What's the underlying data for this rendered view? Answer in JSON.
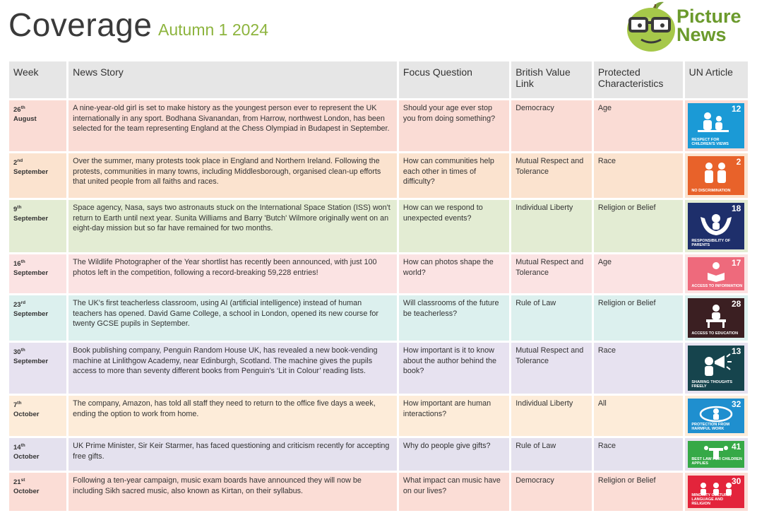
{
  "header": {
    "title": "Coverage",
    "subtitle": "Autumn 1 2024",
    "logo_line1": "Picture",
    "logo_line2": "News",
    "logo_icon": "apple-with-glasses-icon"
  },
  "table": {
    "columns": [
      "Week",
      "News Story",
      "Focus Question",
      "British Value Link",
      "Protected Characteristics",
      "UN Article"
    ],
    "rows": [
      {
        "week_day": "26",
        "week_suffix": "th",
        "week_month": "August",
        "story": "A nine-year-old girl is set to make history as the youngest person ever to represent the UK internationally in any sport. Bodhana Sivanandan, from Harrow, northwest London, has been selected for the team representing England at the Chess Olympiad in Budapest in September.",
        "question": "Should your age ever stop you from doing something?",
        "value": "Democracy",
        "characteristic": "Age",
        "un_number": "12",
        "un_caption": "Respect for children's views",
        "un_color": "#1b9ad6",
        "un_icon": "children-speaking-icon"
      },
      {
        "week_day": "2",
        "week_suffix": "nd",
        "week_month": "September",
        "story": "Over the summer, many protests took place in England and Northern Ireland. Following the protests, communities in many towns, including Middlesborough, organised clean-up efforts that united people from all faiths and races.",
        "question": "How can communities help each other in times of difficulty?",
        "value": "Mutual Respect and Tolerance",
        "characteristic": "Race",
        "un_number": "2",
        "un_caption": "No discrimination",
        "un_color": "#e8622a",
        "un_icon": "two-children-icon"
      },
      {
        "week_day": "9",
        "week_suffix": "th",
        "week_month": "September",
        "story": "Space agency, Nasa, says two astronauts stuck on the International Space Station (ISS) won't return to Earth until next year. Sunita Williams and Barry 'Butch' Wilmore originally went on an eight-day mission but so far have remained for two months.",
        "question": "How can we respond to unexpected events?",
        "value": "Individual Liberty",
        "characteristic": "Religion or Belief",
        "un_number": "18",
        "un_caption": "Responsibility of parents",
        "un_color": "#1e2f6b",
        "un_icon": "parent-hands-icon"
      },
      {
        "week_day": "16",
        "week_suffix": "th",
        "week_month": "September",
        "story": "The Wildlife Photographer of the Year shortlist has recently been announced, with just 100 photos left in the competition, following a record-breaking 59,228 entries!",
        "question": "How can photos shape the world?",
        "value": "Mutual Respect and Tolerance",
        "characteristic": "Age",
        "un_number": "17",
        "un_caption": "Access to information",
        "un_color": "#ee6a7c",
        "un_icon": "child-reading-icon"
      },
      {
        "week_day": "23",
        "week_suffix": "rd",
        "week_month": "September",
        "story": "The UK's first teacherless classroom, using AI (artificial intelligence) instead of human teachers has opened. David Game College, a school in London, opened its new course for twenty GCSE pupils in September.",
        "question": "Will classrooms of the future be teacherless?",
        "value": "Rule of Law",
        "characteristic": "Religion or Belief",
        "un_number": "28",
        "un_caption": "Access to education",
        "un_color": "#3b1f22",
        "un_icon": "child-at-desk-icon"
      },
      {
        "week_day": "30",
        "week_suffix": "th",
        "week_month": "September",
        "story": "Book publishing company, Penguin Random House UK, has revealed a new book-vending machine at Linlithgow Academy, near Edinburgh, Scotland. The machine gives the pupils access to more than seventy different books from Penguin's ‘Lit in Colour’ reading lists.",
        "question": "How important is it to know about the author behind the book?",
        "value": "Mutual Respect and Tolerance",
        "characteristic": "Race",
        "un_number": "13",
        "un_caption": "Sharing thoughts freely",
        "un_color": "#16444d",
        "un_icon": "megaphone-icon"
      },
      {
        "week_day": "7",
        "week_suffix": "th",
        "week_month": "October",
        "story": "The company, Amazon, has told all staff they need to return to the office five days a week, ending the option to work from home.",
        "question": "How important are human interactions?",
        "value": "Individual Liberty",
        "characteristic": "All",
        "un_number": "32",
        "un_caption": "Protection from harmful work",
        "un_color": "#1f8fcf",
        "un_icon": "protected-child-icon"
      },
      {
        "week_day": "14",
        "week_suffix": "th",
        "week_month": "October",
        "story": "UK Prime Minister, Sir Keir Starmer, has faced questioning and criticism recently for accepting free gifts.",
        "question": "Why do people give gifts?",
        "value": "Rule of Law",
        "characteristic": "Race",
        "un_number": "41",
        "un_caption": "Best law for children applies",
        "un_color": "#36a947",
        "un_icon": "law-podium-icon"
      },
      {
        "week_day": "21",
        "week_suffix": "st",
        "week_month": "October",
        "story": "Following a ten-year campaign, music exam boards have announced they will now be including Sikh sacred music, also known as Kirtan, on their syllabus.",
        "question": "What impact can music have on our lives?",
        "value": "Democracy",
        "characteristic": "Religion or Belief",
        "un_number": "30",
        "un_caption": "Minority culture, language and religion",
        "un_color": "#e3243b",
        "un_icon": "group-of-children-icon"
      }
    ]
  }
}
